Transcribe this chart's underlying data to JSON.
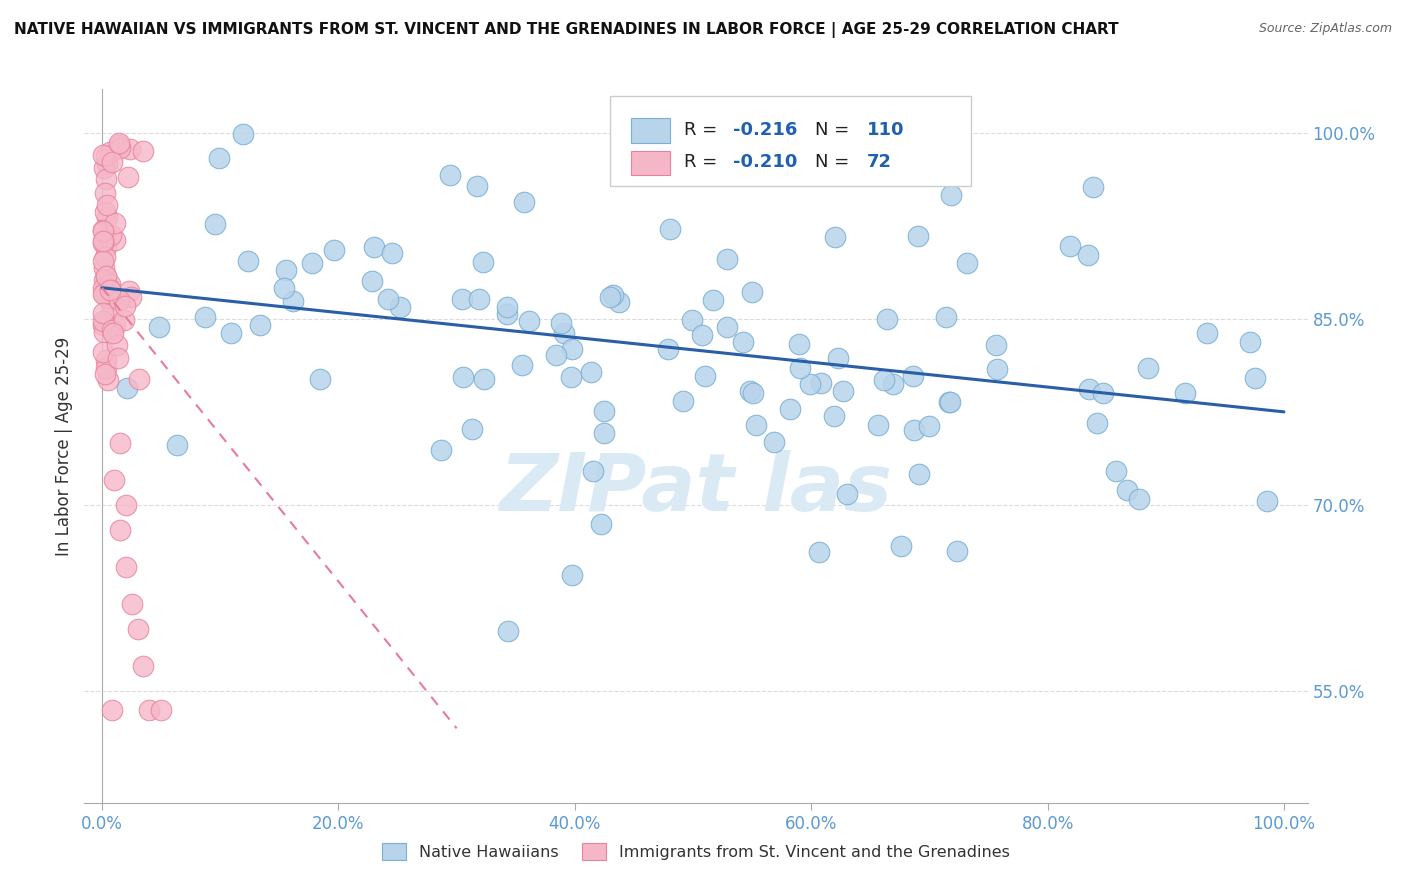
{
  "title": "NATIVE HAWAIIAN VS IMMIGRANTS FROM ST. VINCENT AND THE GRENADINES IN LABOR FORCE | AGE 25-29 CORRELATION CHART",
  "source": "Source: ZipAtlas.com",
  "ylabel": "In Labor Force | Age 25-29",
  "blue_R": "-0.216",
  "blue_N": "110",
  "pink_R": "-0.210",
  "pink_N": "72",
  "blue_color": "#b8d4ea",
  "blue_edge": "#7aafd4",
  "pink_color": "#f5b7c8",
  "pink_edge": "#e8829a",
  "blue_line_color": "#2a5fa8",
  "pink_line_color": "#e87a9a",
  "watermark_color": "#daeaf5",
  "tick_color": "#5a9ad4",
  "grid_color": "#cccccc",
  "title_color": "#111111",
  "source_color": "#666666",
  "ylabel_color": "#333333",
  "xlim": [
    -0.015,
    1.02
  ],
  "ylim": [
    0.46,
    1.035
  ],
  "ytick_vals": [
    0.55,
    0.7,
    0.85,
    1.0
  ],
  "ytick_labels": [
    "55.0%",
    "70.0%",
    "85.0%",
    "100.0%"
  ],
  "xtick_vals": [
    0.0,
    0.2,
    0.4,
    0.6,
    0.8,
    1.0
  ],
  "xtick_labels": [
    "0.0%",
    "20.0%",
    "40.0%",
    "60.0%",
    "80.0%",
    "100.0%"
  ],
  "blue_line_x": [
    0.0,
    1.0
  ],
  "blue_line_y": [
    0.875,
    0.775
  ],
  "pink_line_x": [
    0.0,
    0.3
  ],
  "pink_line_y": [
    0.875,
    0.52
  ]
}
